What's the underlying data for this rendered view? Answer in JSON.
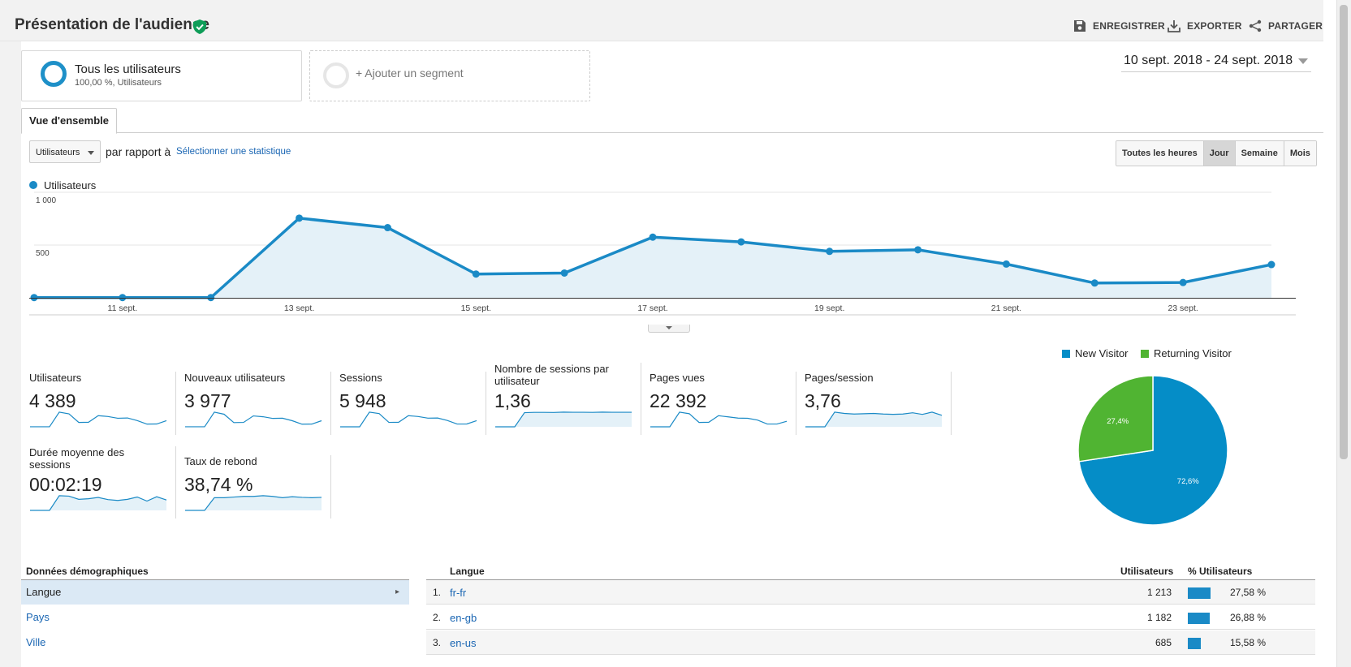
{
  "header": {
    "title": "Présentation de l'audience",
    "actions": [
      {
        "label": "ENREGISTRER",
        "icon": "save-icon"
      },
      {
        "label": "EXPORTER",
        "icon": "download-icon"
      },
      {
        "label": "PARTAGER",
        "icon": "share-icon"
      }
    ]
  },
  "segments": {
    "active": {
      "title": "Tous les utilisateurs",
      "subtitle": "100,00 %, Utilisateurs"
    },
    "add_label": "+ Ajouter un segment"
  },
  "date_range": "10 sept. 2018 - 24 sept. 2018",
  "tab": "Vue d'ensemble",
  "controls": {
    "metric_select": "Utilisateurs",
    "vs_text": "par rapport à",
    "select_stat": "Sélectionner une statistique",
    "granularity": [
      "Toutes les heures",
      "Jour",
      "Semaine",
      "Mois"
    ],
    "granularity_active": "Jour"
  },
  "chart_data": [
    {
      "type": "area",
      "series": [
        {
          "name": "Utilisateurs",
          "x": [
            "10 sept.",
            "11 sept.",
            "12 sept.",
            "13 sept.",
            "14 sept.",
            "15 sept.",
            "16 sept.",
            "17 sept.",
            "18 sept.",
            "19 sept.",
            "20 sept.",
            "21 sept.",
            "22 sept.",
            "23 sept.",
            "24 sept."
          ],
          "values": [
            2,
            2,
            2,
            755,
            665,
            225,
            235,
            575,
            530,
            440,
            455,
            320,
            140,
            145,
            315
          ]
        }
      ],
      "y_ticks": [
        "1 000",
        "500"
      ],
      "x_ticks": [
        "11 sept.",
        "13 sept.",
        "15 sept.",
        "17 sept.",
        "19 sept.",
        "21 sept.",
        "23 sept."
      ],
      "ylim": [
        0,
        1000
      ],
      "color": "#1a8ac6"
    },
    {
      "type": "pie",
      "slices": [
        {
          "name": "New Visitor",
          "value": 72.6,
          "label": "72,6%",
          "color": "#058dc7"
        },
        {
          "name": "Returning Visitor",
          "value": 27.4,
          "label": "27,4%",
          "color": "#50b432"
        }
      ],
      "legend": "top"
    }
  ],
  "scorecards": [
    {
      "label": "Utilisateurs",
      "value": "4 389",
      "spark": [
        2,
        2,
        2,
        755,
        665,
        225,
        235,
        575,
        530,
        440,
        455,
        320,
        140,
        145,
        315
      ],
      "fill": false
    },
    {
      "label": "Nouveaux utilisateurs",
      "value": "3 977",
      "spark": [
        2,
        2,
        2,
        700,
        600,
        200,
        210,
        520,
        480,
        400,
        410,
        290,
        125,
        130,
        290
      ],
      "fill": false
    },
    {
      "label": "Sessions",
      "value": "5 948",
      "spark": [
        2,
        2,
        2,
        1000,
        900,
        300,
        310,
        760,
        700,
        590,
        600,
        430,
        190,
        195,
        420
      ],
      "fill": false
    },
    {
      "label": "Nombre de sessions par utilisateur",
      "value": "1,36",
      "spark": [
        0,
        0,
        0,
        1.3,
        1.33,
        1.33,
        1.32,
        1.35,
        1.34,
        1.34,
        1.33,
        1.35,
        1.34,
        1.34,
        1.34
      ],
      "fill": true
    },
    {
      "label": "Pages vues",
      "value": "22 392",
      "spark": [
        2,
        2,
        2,
        3700,
        3300,
        1100,
        1150,
        2800,
        2500,
        2200,
        2150,
        1700,
        700,
        700,
        1400
      ],
      "fill": false
    },
    {
      "label": "Pages/session",
      "value": "3,76",
      "spark": [
        0,
        0,
        0,
        4.6,
        4.2,
        4.0,
        4.1,
        4.2,
        4.0,
        3.9,
        4.0,
        4.4,
        3.9,
        4.6,
        3.6
      ],
      "fill": true
    },
    {
      "label": "Durée moyenne des sessions",
      "value": "00:02:19",
      "spark": [
        0,
        0,
        0,
        170,
        165,
        128,
        135,
        150,
        125,
        115,
        128,
        155,
        108,
        158,
        120
      ],
      "fill": true
    },
    {
      "label": "Taux de rebond",
      "value": "38,74 %",
      "spark": [
        0,
        0,
        0,
        38,
        38,
        40,
        42,
        42,
        44,
        42,
        38,
        41,
        39,
        38,
        39
      ],
      "fill": true
    }
  ],
  "demographics": {
    "title": "Données démographiques",
    "items": [
      "Langue",
      "Pays",
      "Ville"
    ],
    "selected": "Langue"
  },
  "table": {
    "headers": {
      "dimension": "Langue",
      "users": "Utilisateurs",
      "pct": "% Utilisateurs"
    },
    "rows": [
      {
        "rank": "1.",
        "lang": "fr-fr",
        "users": "1 213",
        "pct": "27,58 %",
        "pct_value": 27.58
      },
      {
        "rank": "2.",
        "lang": "en-gb",
        "users": "1 182",
        "pct": "26,88 %",
        "pct_value": 26.88
      },
      {
        "rank": "3.",
        "lang": "en-us",
        "users": "685",
        "pct": "15,58 %",
        "pct_value": 15.58
      }
    ]
  }
}
